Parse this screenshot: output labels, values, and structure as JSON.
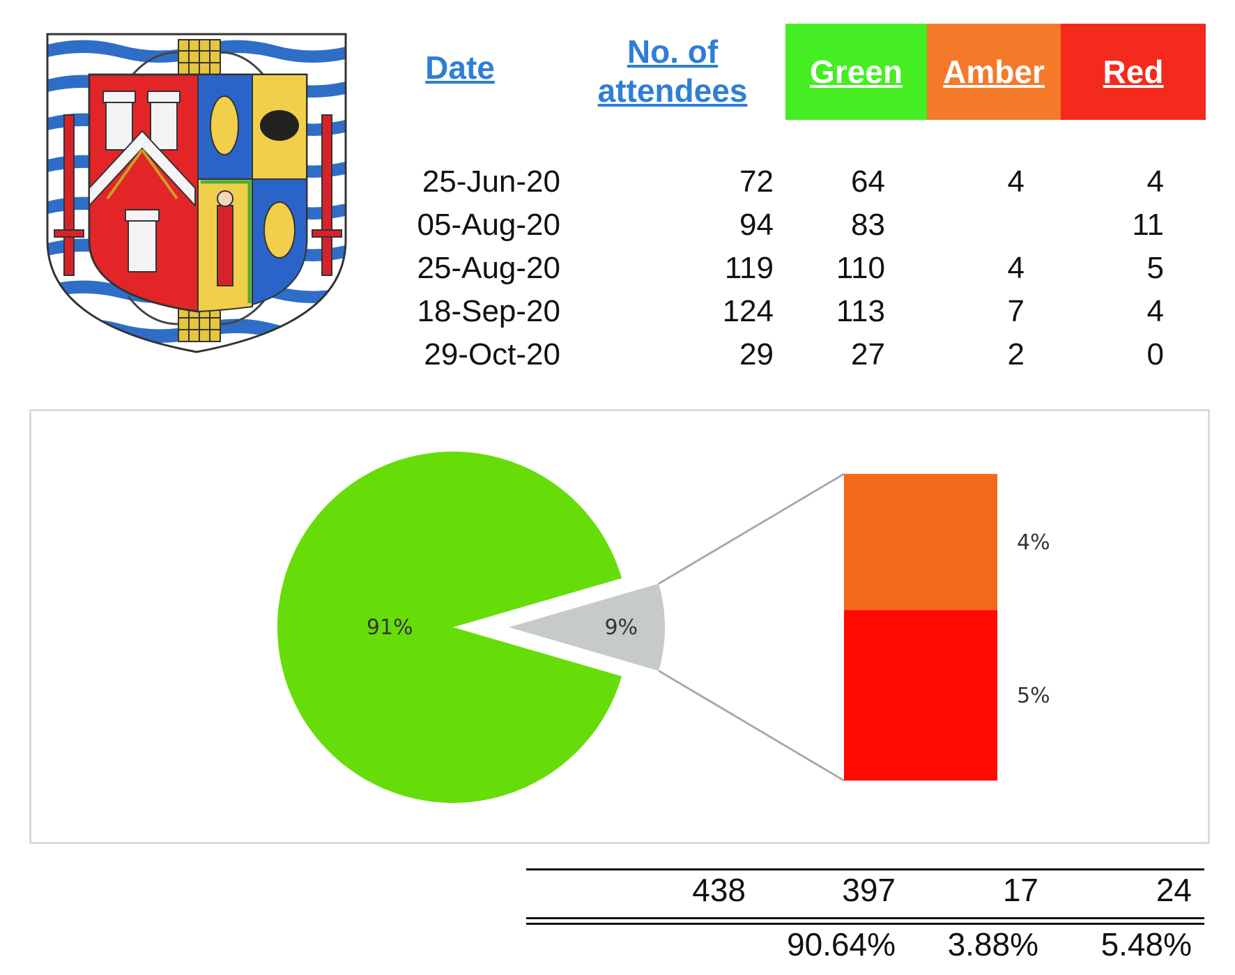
{
  "header": {
    "date_label": "Date",
    "attendees_label_1": "No. of",
    "attendees_label_2": "attendees",
    "green_label": "Green",
    "amber_label": "Amber",
    "red_label": "Red"
  },
  "rows": [
    {
      "date": "25-Jun-20",
      "attendees": "72",
      "green": "64",
      "amber": "4",
      "red": "4"
    },
    {
      "date": "05-Aug-20",
      "attendees": "94",
      "green": "83",
      "amber": "",
      "red": "11"
    },
    {
      "date": "25-Aug-20",
      "attendees": "119",
      "green": "110",
      "amber": "4",
      "red": "5"
    },
    {
      "date": "18-Sep-20",
      "attendees": "124",
      "green": "113",
      "amber": "7",
      "red": "4"
    },
    {
      "date": "29-Oct-20",
      "attendees": "29",
      "green": "27",
      "amber": "2",
      "red": "0"
    }
  ],
  "totals": {
    "attendees": "438",
    "green": "397",
    "amber": "17",
    "red": "24",
    "green_pct": "90.64%",
    "amber_pct": "3.88%",
    "red_pct": "5.48%"
  },
  "colors": {
    "green_band": "#44ee22",
    "amber_band": "#f47a2a",
    "red_band": "#f42a1c",
    "pie_green": "#66dd08",
    "pie_grey": "#c6cacb",
    "bar_amber": "#f4691a",
    "bar_red": "#ff0a00",
    "link_blue": "#2f7ed6",
    "connector": "#a6abab"
  },
  "chart_data": {
    "type": "pie",
    "variant": "pie-of-bar",
    "slices": [
      {
        "label": "91%",
        "value": 91,
        "color": "#66dd08"
      },
      {
        "label": "9%",
        "value": 9,
        "color": "#c6cacb",
        "exploded": true
      }
    ],
    "breakdown": {
      "of_slice": "9%",
      "segments": [
        {
          "label": "4%",
          "value": 4,
          "color": "#f4691a"
        },
        {
          "label": "5%",
          "value": 5,
          "color": "#ff0a00"
        }
      ]
    }
  }
}
